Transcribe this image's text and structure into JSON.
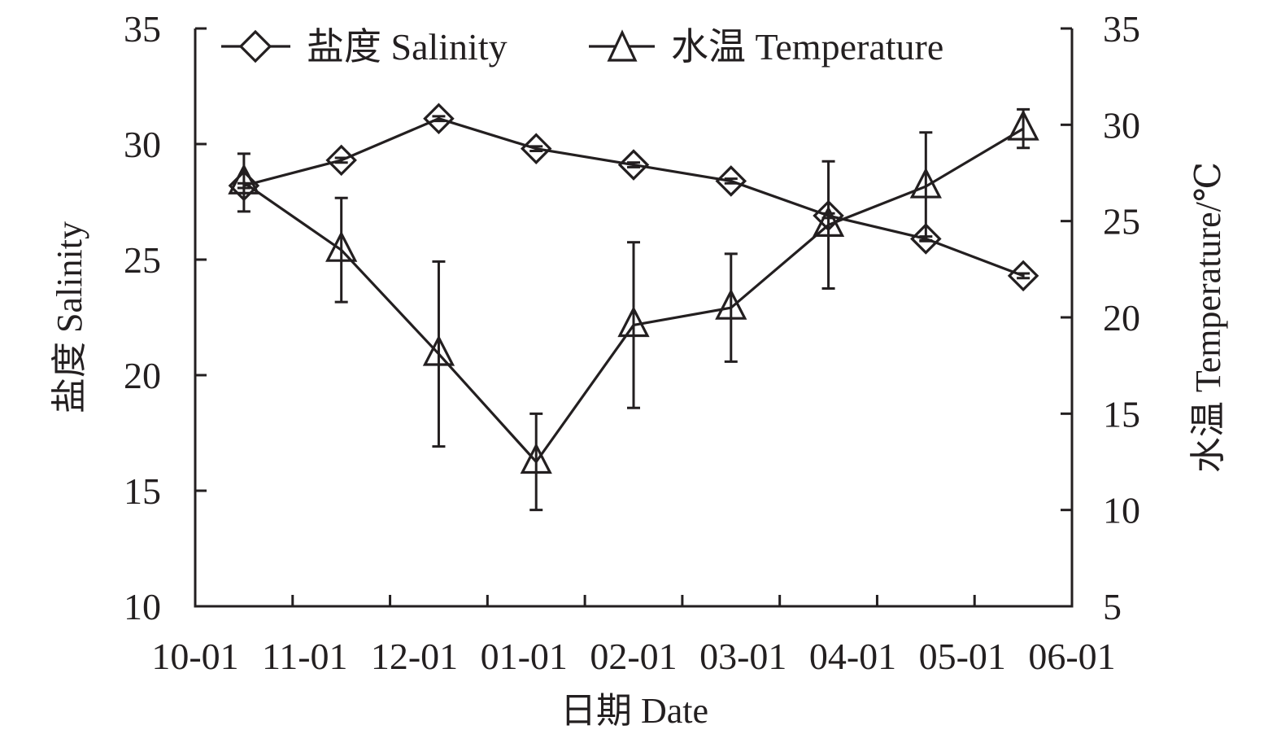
{
  "chart_data": {
    "type": "line",
    "title": "",
    "xlabel": "日期 Date",
    "ylabel_left": "盐度 Salinity",
    "ylabel_right": "水温 Temperature/℃",
    "x_tick_labels": [
      "10-01",
      "11-01",
      "12-01",
      "01-01",
      "02-01",
      "03-01",
      "04-01",
      "05-01",
      "06-01"
    ],
    "ylim_left": [
      10,
      35
    ],
    "yticks_left": [
      10,
      15,
      20,
      25,
      30,
      35
    ],
    "ylim_right": [
      5,
      35
    ],
    "yticks_right": [
      5,
      10,
      15,
      20,
      25,
      30,
      35
    ],
    "grid": false,
    "legend_position": "top",
    "series": [
      {
        "name": "盐度 Salinity",
        "axis": "left",
        "marker": "diamond",
        "values": [
          28.2,
          29.3,
          31.1,
          29.8,
          29.1,
          28.4,
          26.9,
          25.9,
          24.3
        ],
        "errors": [
          0.1,
          0.1,
          0.1,
          0.1,
          0.1,
          0.1,
          0.1,
          0.1,
          0.1
        ]
      },
      {
        "name": "水温 Temperature",
        "axis": "right",
        "marker": "triangle",
        "values": [
          27.0,
          23.5,
          18.1,
          12.5,
          19.6,
          20.5,
          24.8,
          26.8,
          29.8
        ],
        "errors": [
          1.5,
          2.7,
          4.8,
          2.5,
          4.3,
          2.8,
          3.3,
          2.8,
          1.0
        ]
      }
    ]
  },
  "colors": {
    "ink": "#231f20",
    "background": "#ffffff"
  }
}
